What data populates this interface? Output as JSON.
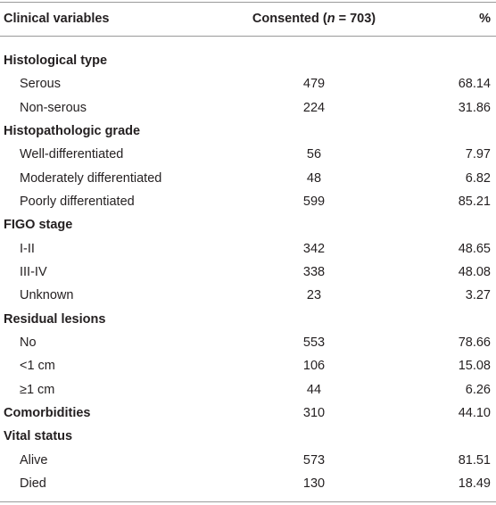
{
  "header": {
    "columns": [
      {
        "text": "Clinical variables"
      },
      {
        "parts": [
          "Consented (",
          "n",
          " = 703)"
        ]
      },
      {
        "text": "%"
      }
    ]
  },
  "sections": [
    {
      "title": "Histological type",
      "rows": [
        [
          "Serous",
          "479",
          "68.14"
        ],
        [
          "Non-serous",
          "224",
          "31.86"
        ]
      ]
    },
    {
      "title": "Histopathologic grade",
      "rows": [
        [
          "Well-differentiated",
          "56",
          "7.97"
        ],
        [
          "Moderately differentiated",
          "48",
          "6.82"
        ],
        [
          "Poorly differentiated",
          "599",
          "85.21"
        ]
      ]
    },
    {
      "title": "FIGO stage",
      "rows": [
        [
          "I-II",
          "342",
          "48.65"
        ],
        [
          "III-IV",
          "338",
          "48.08"
        ],
        [
          "Unknown",
          "23",
          "3.27"
        ]
      ]
    },
    {
      "title": "Residual lesions",
      "rows": [
        [
          "No",
          "553",
          "78.66"
        ],
        [
          "<1 cm",
          "106",
          "15.08"
        ],
        [
          "≥1 cm",
          "44",
          "6.26"
        ]
      ]
    },
    {
      "title": "Comorbidities",
      "count": "310",
      "percent": "44.10",
      "rows": []
    },
    {
      "title": "Vital status",
      "rows": [
        [
          "Alive",
          "573",
          "81.51"
        ],
        [
          "Died",
          "130",
          "18.49"
        ]
      ]
    }
  ]
}
